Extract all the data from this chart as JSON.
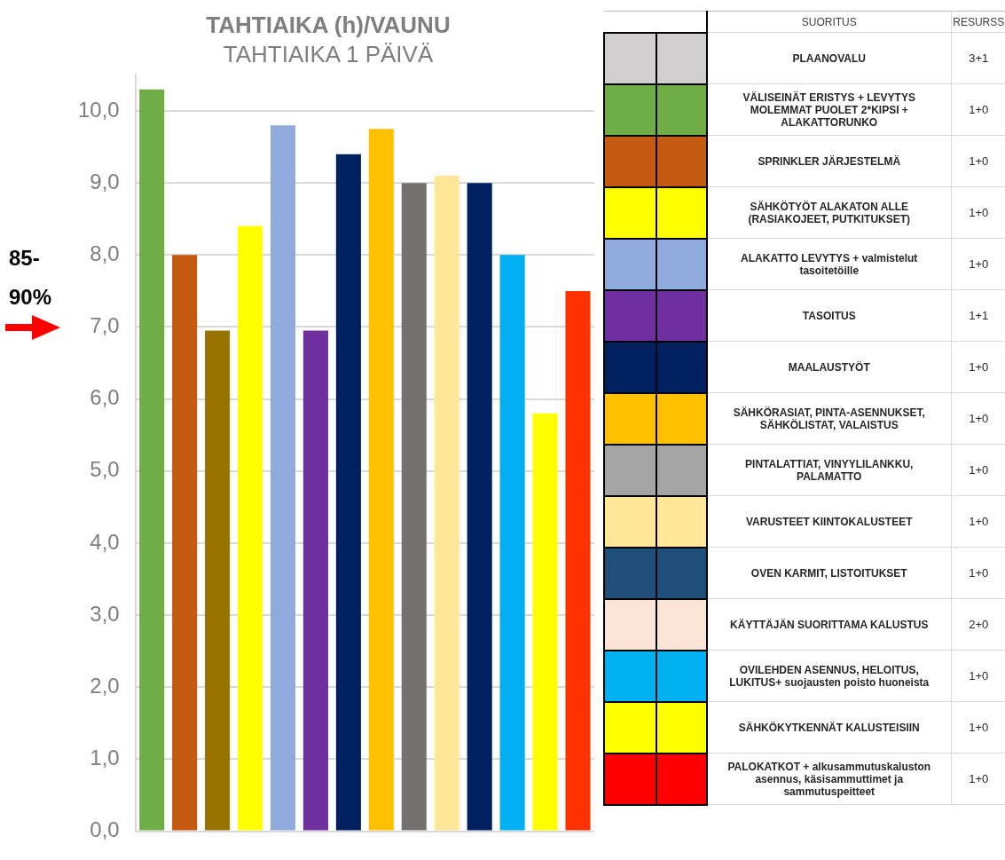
{
  "chart_data": [
    {
      "type": "bar",
      "title": "TAHTIAIKA (h)/VAUNU",
      "subtitle": "TAHTIAIKA 1 PÄIVÄ",
      "categories": [
        null,
        null,
        null,
        null,
        null,
        null,
        null,
        null,
        null,
        null,
        null,
        null,
        null,
        null
      ],
      "values": [
        10.3,
        8.0,
        6.95,
        8.4,
        9.8,
        6.95,
        9.4,
        9.75,
        9.0,
        9.1,
        9.0,
        8.0,
        5.8,
        7.5
      ],
      "colors": [
        "#70ad47",
        "#c55a11",
        "#997300",
        "#ffff00",
        "#8faadc",
        "#7030a0",
        "#002060",
        "#ffc000",
        "#767171",
        "#ffe699",
        "#002060",
        "#00b0f0",
        "#ffff00",
        "#ff3300"
      ],
      "ylim": [
        0,
        10.5
      ],
      "yticks": [
        {
          "value": 0,
          "label": "0,0"
        },
        {
          "value": 1,
          "label": "1,0"
        },
        {
          "value": 2,
          "label": "2,0"
        },
        {
          "value": 3,
          "label": "3,0"
        },
        {
          "value": 4,
          "label": "4,0"
        },
        {
          "value": 5,
          "label": "5,0"
        },
        {
          "value": 6,
          "label": "6,0"
        },
        {
          "value": 7,
          "label": "7,0"
        },
        {
          "value": 8,
          "label": "8,0"
        },
        {
          "value": 9,
          "label": "9,0"
        },
        {
          "value": 10,
          "label": "10,0"
        }
      ],
      "grid": "y",
      "legend": false,
      "tick_labels": "y",
      "annotations": [
        "85-90%"
      ]
    },
    {
      "type": "other",
      "annotations": [
        "SUORITUS",
        "RESURSS"
      ],
      "categories": [
        "PLAANOVALU",
        "VÄLISEINÄT ERISTYS + LEVYTYS MOLEMMAT PUOLET 2*KIPSI + ALAKATTORUNKO",
        "SPRINKLER JÄRJESTELMÄ",
        "SÄHKÖTYÖT ALAKATON ALLE (RASIAKOJEET, PUTKITUKSET)",
        "ALAKATTO LEVYTYS + valmistelut tasoitetöille",
        "TASOITUS",
        "MAALAUSTYÖT",
        "SÄHKÖRASIAT, PINTA-ASENNUKSET, SÄHKÖLISTAT, VALAISTUS",
        "PINTALATTIAT, VINYYLILANKKU, PALAMATTO",
        "VARUSTEET KIINTOKALUSTEET",
        "OVEN KARMIT, LISTOITUKSET",
        "KÄYTTÄJÄN SUORITTAMA KALUSTUS",
        "OVILEHDEN ASENNUS, HELOITUS, LUKITUS+ suojausten poisto huoneista",
        "SÄHKÖKYTKENNÄT KALUSTEISIIN",
        "PALOKATKOT + alkusammutuskaluston asennus, käsisammuttimet ja sammutuspeitteet"
      ],
      "value_labels": [
        "3+1",
        "1+0",
        "1+0",
        "1+0",
        "1+0",
        "1+1",
        "1+0",
        "1+0",
        "1+0",
        "1+0",
        "1+0",
        "2+0",
        "1+0",
        "1+0",
        "1+0"
      ],
      "colors": [
        "#d0cece",
        "#70ad47",
        "#c55a11",
        "#ffff00",
        "#8faadc",
        "#7030a0",
        "#002060",
        "#ffc000",
        "#a5a5a5",
        "#ffe699",
        "#1f4e79",
        "#fbe5d6",
        "#00b0f0",
        "#ffff00",
        "#ff0000"
      ]
    }
  ]
}
